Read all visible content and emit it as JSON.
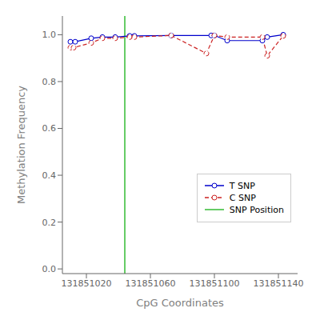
{
  "chart_data": {
    "type": "line",
    "title": "",
    "xlabel": "CpG Coordinates",
    "ylabel": "Methylation Frequency",
    "xlim": [
      131851005,
      131851152
    ],
    "ylim": [
      -0.02,
      1.08
    ],
    "xticks": [
      131851020,
      131851060,
      131851100,
      131851140
    ],
    "yticks": [
      {
        "value": 0.0,
        "label": "0.0"
      },
      0.2,
      0.4,
      0.6,
      0.8,
      {
        "value": 1.0,
        "label": "1.0"
      }
    ],
    "series": [
      {
        "name": "T SNP",
        "color": "#0000CC",
        "marker": "o",
        "line_style": "solid",
        "x": [
          131851010,
          131851013,
          131851023,
          131851030,
          131851038,
          131851047,
          131851050,
          131851073,
          131851098,
          131851100,
          131851108,
          131851130,
          131851133,
          131851143
        ],
        "values": [
          0.97,
          0.97,
          0.985,
          0.99,
          0.99,
          0.995,
          0.995,
          0.997,
          0.997,
          0.997,
          0.975,
          0.975,
          0.99,
          1.0
        ]
      },
      {
        "name": "C SNP",
        "color": "#CC2222",
        "marker": "o",
        "line_style": "dashed",
        "x": [
          131851010,
          131851012,
          131851023,
          131851030,
          131851038,
          131851047,
          131851050,
          131851073,
          131851095,
          131851100,
          131851108,
          131851130,
          131851133,
          131851143
        ],
        "values": [
          0.945,
          0.945,
          0.965,
          0.985,
          0.985,
          0.99,
          0.99,
          0.997,
          0.92,
          0.997,
          0.99,
          0.99,
          0.91,
          0.995
        ]
      }
    ],
    "vlines": [
      {
        "x": 131851044,
        "name": "SNP Position",
        "color": "#33BB33"
      }
    ],
    "legend": "lower right",
    "grid": false
  }
}
